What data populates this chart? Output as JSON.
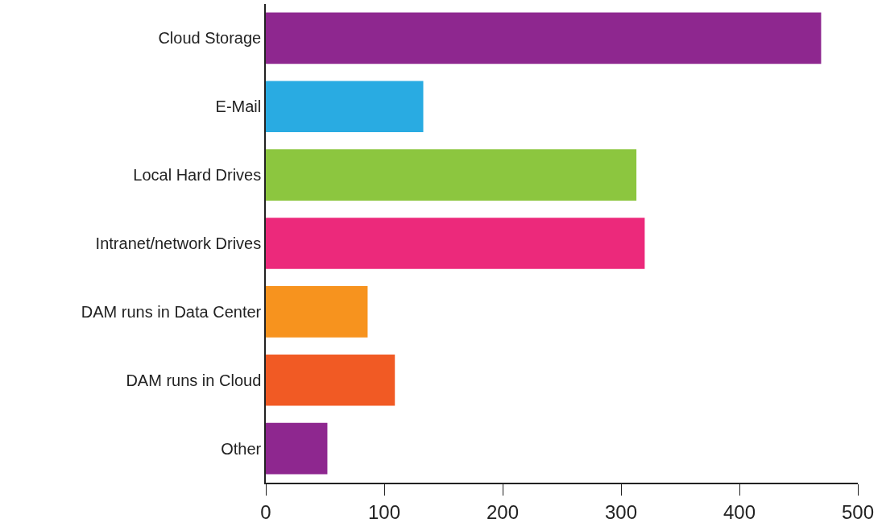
{
  "chart_data": {
    "type": "bar",
    "orientation": "horizontal",
    "categories": [
      "Cloud Storage",
      "E-Mail",
      "Local Hard Drives",
      "Intranet/network Drives",
      "DAM runs in Data Center",
      "DAM runs in Cloud",
      "Other"
    ],
    "values": [
      469,
      133,
      313,
      320,
      86,
      109,
      52
    ],
    "colors": [
      "#8e278f",
      "#29abe2",
      "#8cc63f",
      "#ec297b",
      "#f7931e",
      "#f15a24",
      "#8e278f"
    ],
    "xlim": [
      0,
      500
    ],
    "xticks": [
      0,
      100,
      200,
      300,
      400,
      500
    ]
  }
}
